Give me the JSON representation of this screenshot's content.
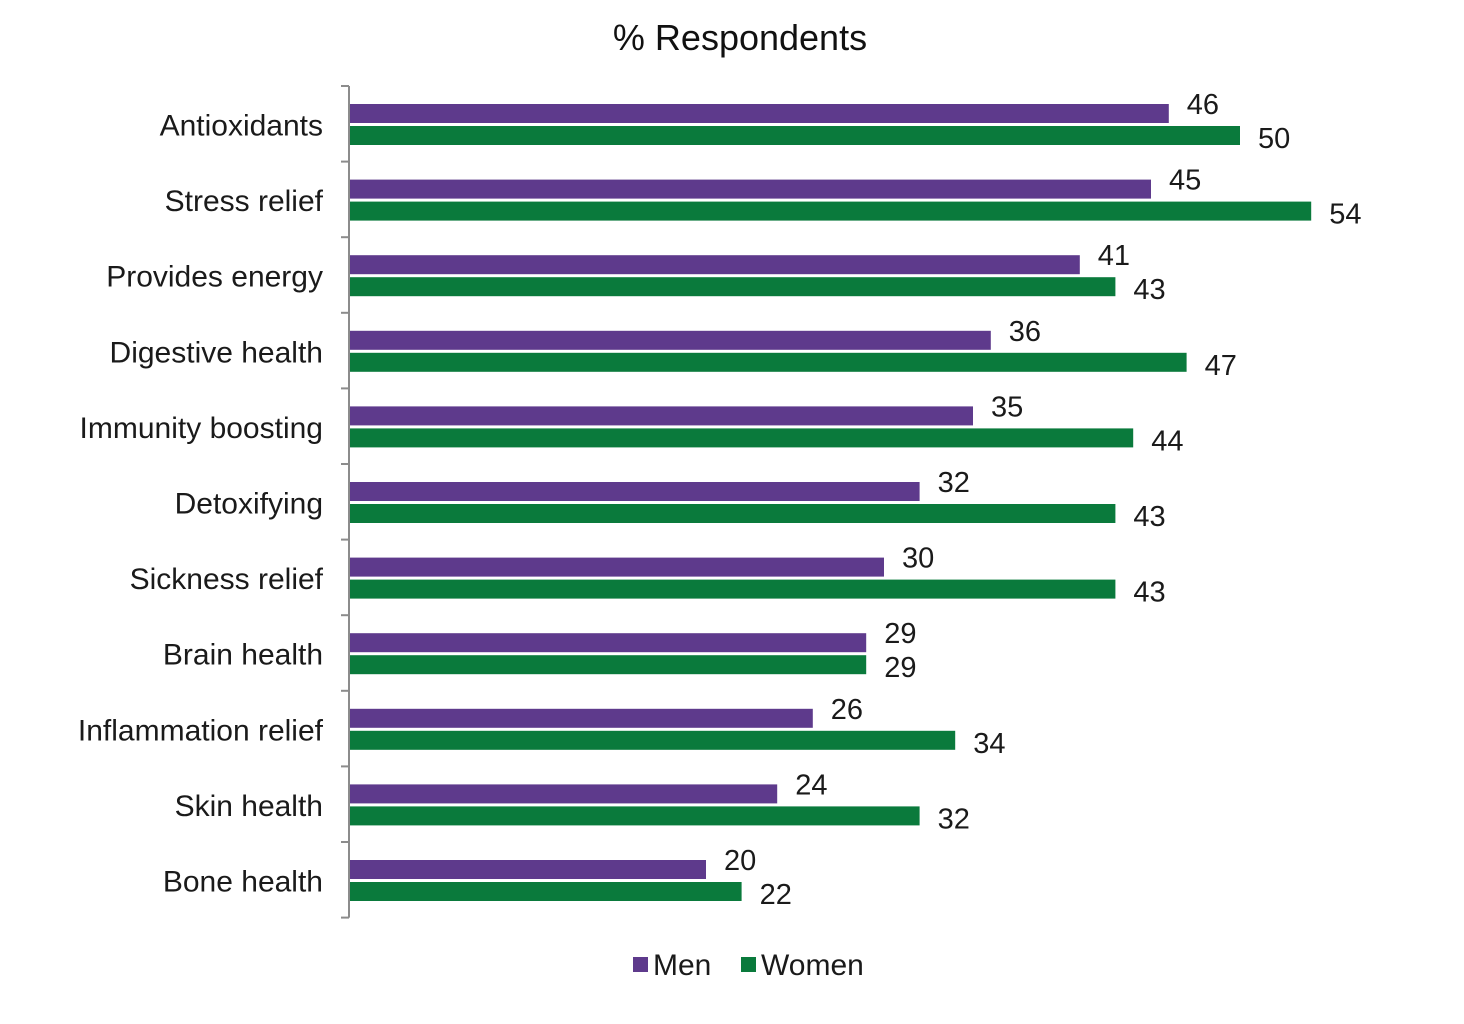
{
  "chart_data": {
    "type": "bar",
    "orientation": "horizontal",
    "title": "% Respondents",
    "xlabel": "",
    "ylabel": "",
    "xlim": [
      0,
      60
    ],
    "grid": false,
    "legend_position": "bottom",
    "categories": [
      "Antioxidants",
      "Stress relief",
      "Provides energy",
      "Digestive health",
      "Immunity boosting",
      "Detoxifying",
      "Sickness relief",
      "Brain health",
      "Inflammation relief",
      "Skin health",
      "Bone health"
    ],
    "series": [
      {
        "name": "Men",
        "color": "#5e3a8c",
        "values": [
          46,
          45,
          41,
          36,
          35,
          32,
          30,
          29,
          26,
          24,
          20
        ]
      },
      {
        "name": "Women",
        "color": "#0a7a3c",
        "values": [
          50,
          54,
          43,
          47,
          44,
          43,
          43,
          29,
          34,
          32,
          22
        ]
      }
    ]
  }
}
